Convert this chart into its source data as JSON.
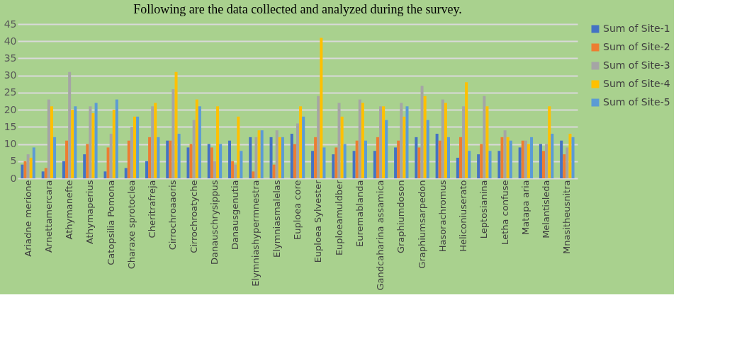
{
  "chart_data": {
    "type": "bar",
    "title": "Following are the data collected and analyzed during the survey.",
    "categories": [
      "Ariadne merione",
      "Arnettamercara",
      "Athymanefte",
      "Athymaperius",
      "Catopsilia Pomona",
      "Charaxe sprotoclea",
      "Cheritrafreja",
      "Cirrochroaaoris",
      "Cirrochroatyche",
      "Danauschrysippus",
      "Danausgenutia",
      "Elymniashypermnestra",
      "Elymniasmalelas",
      "Euploea core",
      "Euploea Sylvester",
      "Euploeamuldber",
      "Euremablanda",
      "Gandcaharina assamica",
      "Graphiumdoson",
      "Graphiumsarpedon",
      "Hasorachromus",
      "Heliconiuserato",
      "Leptosianina",
      "Letha confuse",
      "Matapa aria",
      "Melantisleda",
      "Mnasitheusnitra"
    ],
    "series": [
      {
        "name": "Sum of Site-1",
        "color": "#4472c4",
        "values": [
          4,
          2,
          5,
          7,
          2,
          3,
          5,
          11,
          9,
          10,
          11,
          12,
          12,
          13,
          8,
          7,
          8,
          8,
          9,
          12,
          13,
          6,
          7,
          8,
          9,
          10,
          11
        ]
      },
      {
        "name": "Sum of Site-2",
        "color": "#ed7d31",
        "values": [
          5,
          3,
          11,
          10,
          9,
          11,
          12,
          11,
          10,
          9,
          5,
          2,
          4,
          10,
          12,
          9,
          11,
          12,
          11,
          9,
          11,
          12,
          10,
          12,
          11,
          8,
          7
        ]
      },
      {
        "name": "Sum of Site-3",
        "color": "#a5a5a5",
        "values": [
          7,
          23,
          31,
          21,
          13,
          15,
          21,
          26,
          17,
          5,
          4,
          12,
          14,
          16,
          24,
          22,
          23,
          21,
          22,
          27,
          23,
          21,
          24,
          14,
          11,
          10,
          9
        ]
      },
      {
        "name": "Sum of Site-4",
        "color": "#ffc000",
        "values": [
          6,
          21,
          20,
          19,
          20,
          18,
          22,
          31,
          23,
          21,
          18,
          14,
          12,
          21,
          41,
          18,
          22,
          21,
          18,
          24,
          22,
          28,
          21,
          12,
          10,
          21,
          13
        ]
      },
      {
        "name": "Sum of Site-5",
        "color": "#5b9bd5",
        "values": [
          9,
          12,
          21,
          22,
          23,
          18,
          12,
          13,
          21,
          10,
          8,
          14,
          12,
          18,
          9,
          10,
          11,
          17,
          21,
          17,
          12,
          8,
          8,
          11,
          12,
          13,
          12
        ]
      }
    ],
    "ylim": [
      0,
      45
    ],
    "yticks": [
      0,
      5,
      10,
      15,
      20,
      25,
      30,
      35,
      40,
      45
    ],
    "grid": "y",
    "legend": "right"
  }
}
